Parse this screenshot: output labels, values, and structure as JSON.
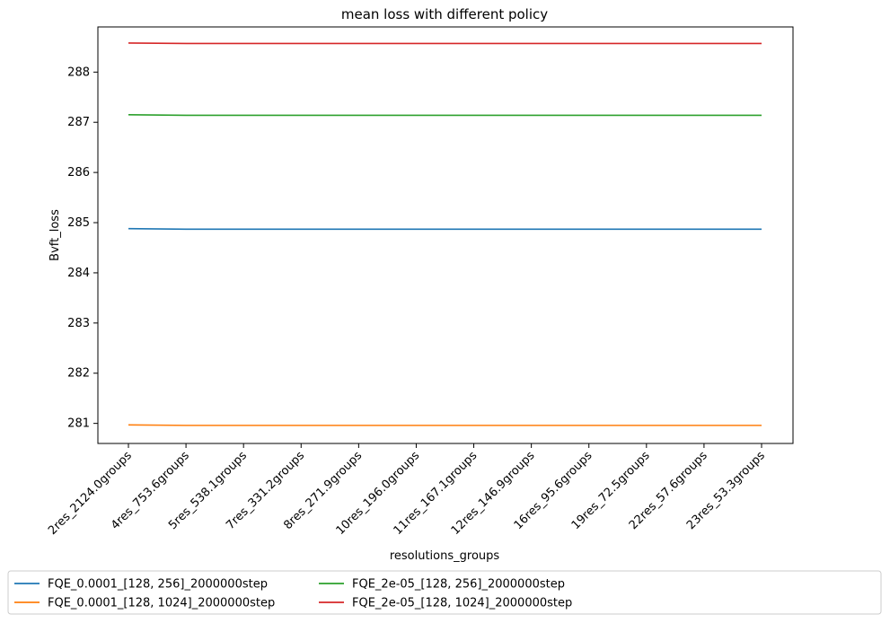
{
  "chart_data": {
    "type": "line",
    "title": "mean loss with different policy",
    "xlabel": "resolutions_groups",
    "ylabel": "Bvft_loss",
    "categories": [
      "2res_2124.0groups",
      "4res_753.6groups",
      "5res_538.1groups",
      "7res_331.2groups",
      "8res_271.9groups",
      "10res_196.0groups",
      "11res_167.1groups",
      "12res_146.9groups",
      "16res_95.6groups",
      "19res_72.5groups",
      "22res_57.6groups",
      "23res_53.3groups"
    ],
    "ylim": [
      280.6,
      288.9
    ],
    "yticks": [
      281,
      282,
      283,
      284,
      285,
      286,
      287,
      288
    ],
    "grid": false,
    "legend_position": "bottom-outside",
    "series": [
      {
        "name": "FQE_0.0001_[128, 256]_2000000step",
        "color": "#1f77b4",
        "values": [
          284.88,
          284.87,
          284.87,
          284.87,
          284.87,
          284.87,
          284.87,
          284.87,
          284.87,
          284.87,
          284.87,
          284.87
        ]
      },
      {
        "name": "FQE_0.0001_[128, 1024]_2000000step",
        "color": "#ff7f0e",
        "values": [
          280.97,
          280.96,
          280.96,
          280.96,
          280.96,
          280.96,
          280.96,
          280.96,
          280.96,
          280.96,
          280.96,
          280.96
        ]
      },
      {
        "name": "FQE_2e-05_[128, 256]_2000000step",
        "color": "#2ca02c",
        "values": [
          287.15,
          287.14,
          287.14,
          287.14,
          287.14,
          287.14,
          287.14,
          287.14,
          287.14,
          287.14,
          287.14,
          287.14
        ]
      },
      {
        "name": "FQE_2e-05_[128, 1024]_2000000step",
        "color": "#d62728",
        "values": [
          288.58,
          288.57,
          288.57,
          288.57,
          288.57,
          288.57,
          288.57,
          288.57,
          288.57,
          288.57,
          288.57,
          288.57
        ]
      }
    ]
  }
}
